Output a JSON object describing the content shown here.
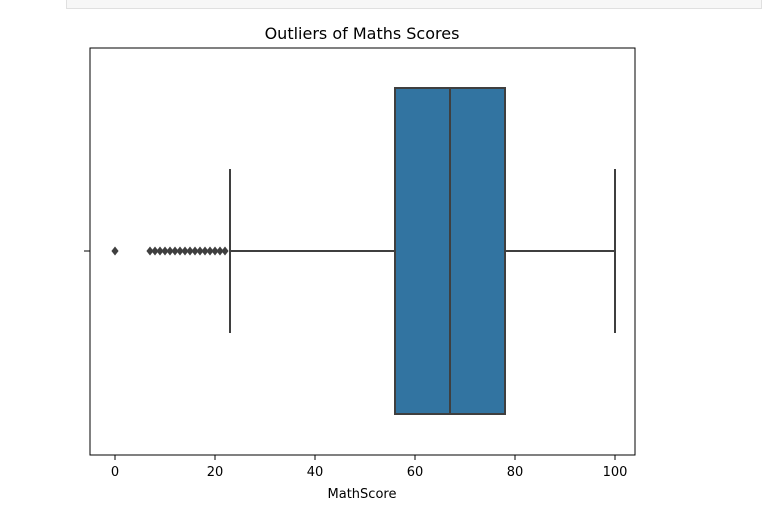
{
  "chart_data": {
    "type": "box",
    "title": "Outliers of Maths Scores",
    "xlabel": "MathScore",
    "ylabel": "",
    "xlim": [
      -5,
      104
    ],
    "xticks": [
      0,
      20,
      40,
      60,
      80,
      100
    ],
    "tick_labels": [
      "0",
      "20",
      "40",
      "60",
      "80",
      "100"
    ],
    "grid": false,
    "box": {
      "whisker_low": 23,
      "q1": 56,
      "median": 67,
      "q3": 78,
      "whisker_high": 100,
      "color": "#3274a1",
      "edge_color": "#3f3f3f"
    },
    "outliers": [
      0,
      7,
      8,
      9,
      10,
      11,
      12,
      13,
      14,
      15,
      16,
      17,
      18,
      19,
      20,
      21,
      22
    ]
  }
}
